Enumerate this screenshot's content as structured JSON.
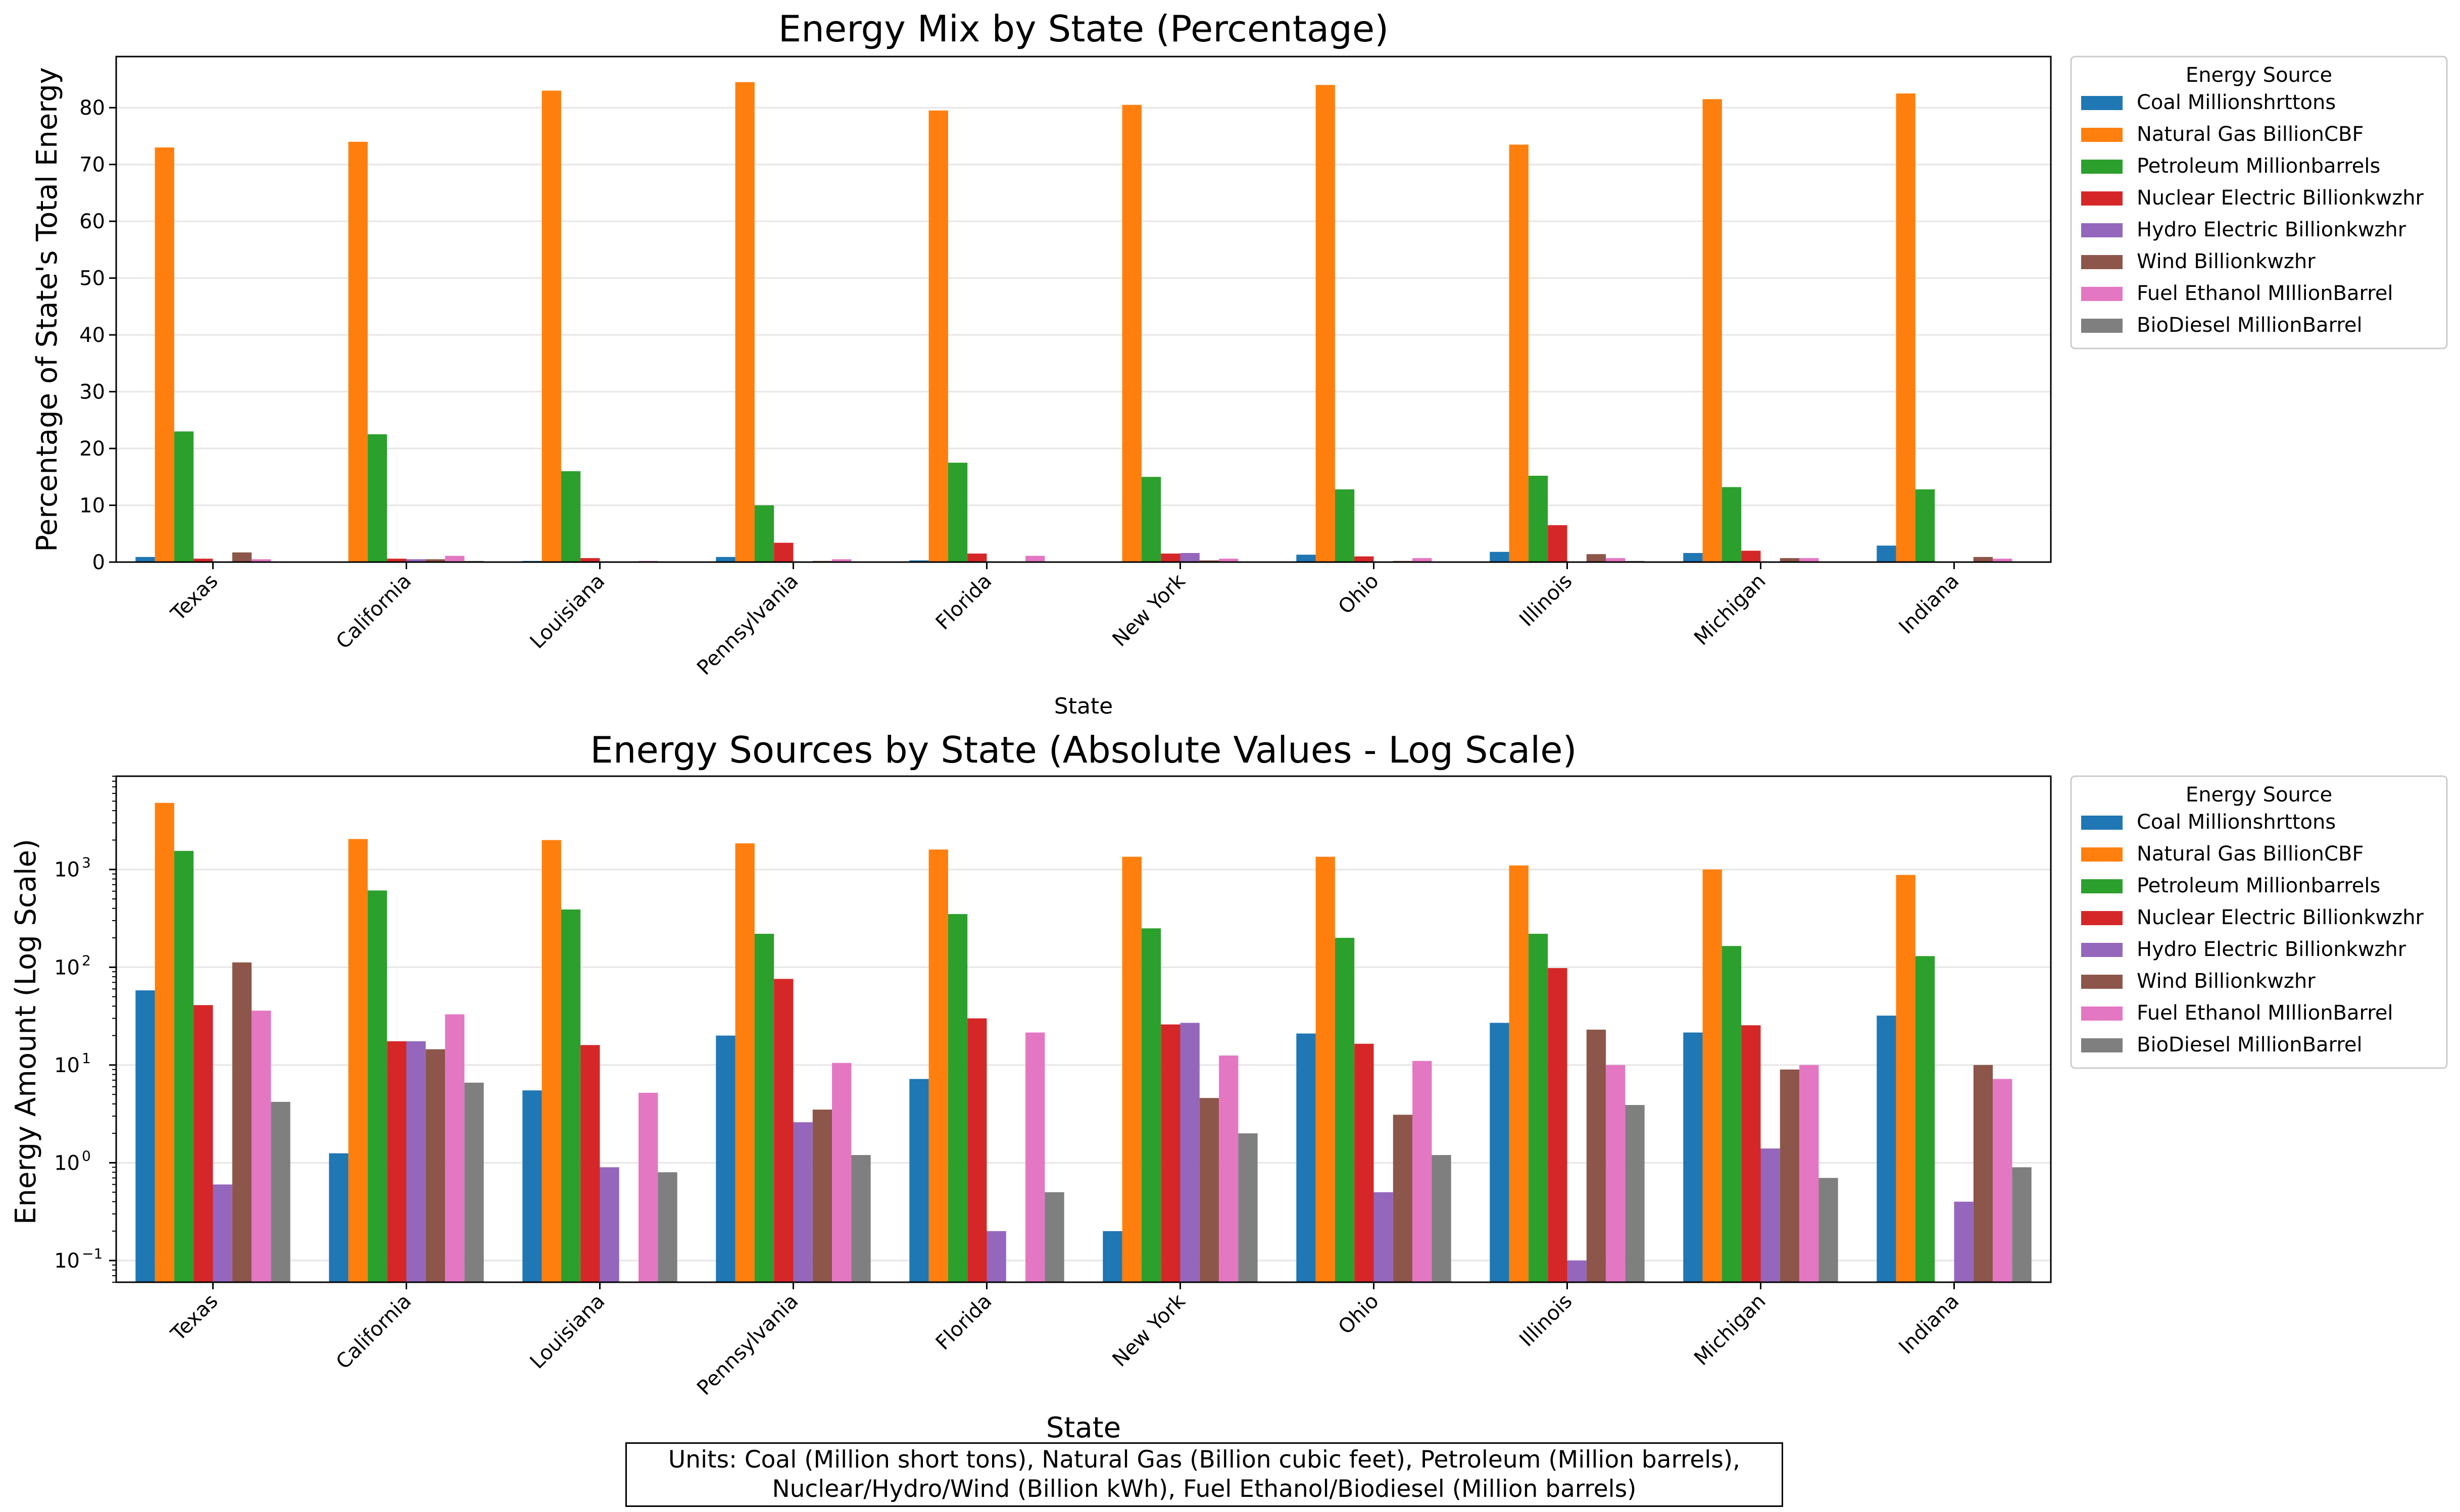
{
  "chart_data": [
    {
      "type": "bar",
      "title": "Energy Mix by State (Percentage)",
      "xlabel": "State",
      "ylabel": "Percentage of State's Total Energy",
      "ylim": [
        0,
        89
      ],
      "yticks": [
        "0",
        "10",
        "20",
        "30",
        "40",
        "50",
        "60",
        "70",
        "80"
      ],
      "yscale": "linear",
      "grid": "horizontal",
      "legend_placement": "outside-right",
      "legend_title": "Energy Source",
      "categories": [
        "Texas",
        "California",
        "Louisiana",
        "Pennsylvania",
        "Florida",
        "New York",
        "Ohio",
        "Illinois",
        "Michigan",
        "Indiana"
      ],
      "series": [
        {
          "name": "Coal Millionshrttons",
          "color": "#1f77b4",
          "values": [
            0.9,
            0.05,
            0.2,
            0.9,
            0.3,
            0.0,
            1.3,
            1.8,
            1.6,
            2.9
          ]
        },
        {
          "name": "Natural Gas BillionCBF",
          "color": "#ff7f0e",
          "values": [
            73.0,
            74.0,
            83.0,
            84.5,
            79.5,
            80.5,
            84.0,
            73.5,
            81.5,
            82.5
          ]
        },
        {
          "name": "Petroleum Millionbarrels",
          "color": "#2ca02c",
          "values": [
            23.0,
            22.5,
            16.0,
            10.0,
            17.5,
            15.0,
            12.8,
            15.2,
            13.2,
            12.8
          ]
        },
        {
          "name": "Nuclear Electric Billionkwzhr",
          "color": "#d62728",
          "values": [
            0.6,
            0.6,
            0.7,
            3.4,
            1.5,
            1.5,
            1.0,
            6.5,
            2.0,
            0.0
          ]
        },
        {
          "name": "Hydro Electric Billionkwzhr",
          "color": "#9467bd",
          "values": [
            0.0,
            0.5,
            0.0,
            0.1,
            0.0,
            1.6,
            0.0,
            0.0,
            0.1,
            0.05
          ]
        },
        {
          "name": "Wind Billionkwzhr",
          "color": "#8c564b",
          "values": [
            1.7,
            0.5,
            0.0,
            0.2,
            0.0,
            0.3,
            0.2,
            1.4,
            0.7,
            0.9
          ]
        },
        {
          "name": "Fuel Ethanol MIllionBarrel",
          "color": "#e377c2",
          "values": [
            0.5,
            1.1,
            0.2,
            0.5,
            1.1,
            0.6,
            0.7,
            0.7,
            0.7,
            0.6
          ]
        },
        {
          "name": "BioDiesel MillionBarrel",
          "color": "#7f7f7f",
          "values": [
            0.1,
            0.2,
            0.05,
            0.05,
            0.03,
            0.1,
            0.1,
            0.2,
            0.05,
            0.1
          ]
        }
      ]
    },
    {
      "type": "bar",
      "title": "Energy Sources by State (Absolute Values - Log Scale)",
      "xlabel": "State",
      "ylabel": "Energy Amount (Log Scale)",
      "yscale": "log",
      "ylim": [
        0.06,
        9000
      ],
      "yticks": [
        "10",
        "10",
        "10",
        "10",
        "10",
        "10"
      ],
      "ytick_exponents": [
        "−1",
        "0",
        "1",
        "2",
        "3",
        ""
      ],
      "ytick_values": [
        0.1,
        1,
        10,
        100,
        1000
      ],
      "grid": "horizontal",
      "legend_placement": "outside-right",
      "legend_title": "Energy Source",
      "categories": [
        "Texas",
        "California",
        "Louisiana",
        "Pennsylvania",
        "Florida",
        "New York",
        "Ohio",
        "Illinois",
        "Michigan",
        "Indiana"
      ],
      "series": [
        {
          "name": "Coal Millionshrttons",
          "color": "#1f77b4",
          "values": [
            58,
            1.25,
            5.5,
            20,
            7.2,
            0.2,
            21,
            27,
            21.5,
            32
          ]
        },
        {
          "name": "Natural Gas BillionCBF",
          "color": "#ff7f0e",
          "values": [
            4800,
            2050,
            2000,
            1850,
            1600,
            1350,
            1350,
            1100,
            1000,
            880
          ]
        },
        {
          "name": "Petroleum Millionbarrels",
          "color": "#2ca02c",
          "values": [
            1550,
            610,
            390,
            220,
            350,
            250,
            200,
            220,
            165,
            130
          ]
        },
        {
          "name": "Nuclear Electric Billionkwzhr",
          "color": "#d62728",
          "values": [
            41,
            17.5,
            16,
            76,
            30,
            26,
            16.5,
            98,
            25.5,
            null
          ]
        },
        {
          "name": "Hydro Electric Billionkwzhr",
          "color": "#9467bd",
          "values": [
            0.6,
            17.5,
            0.9,
            2.6,
            0.2,
            27,
            0.5,
            0.1,
            1.4,
            0.4
          ]
        },
        {
          "name": "Wind Billionkwzhr",
          "color": "#8c564b",
          "values": [
            112,
            14.5,
            null,
            3.5,
            null,
            4.6,
            3.1,
            23,
            9,
            10
          ]
        },
        {
          "name": "Fuel Ethanol MIllionBarrel",
          "color": "#e377c2",
          "values": [
            36,
            33,
            5.2,
            10.5,
            21.5,
            12.5,
            11,
            10,
            10,
            7.2
          ]
        },
        {
          "name": "BioDiesel MillionBarrel",
          "color": "#7f7f7f",
          "values": [
            4.2,
            6.6,
            0.8,
            1.2,
            0.5,
            2,
            1.2,
            3.9,
            0.7,
            0.9
          ]
        }
      ]
    }
  ],
  "units_note": {
    "line1": "Units: Coal (Million short tons), Natural Gas (Billion cubic feet), Petroleum (Million barrels),",
    "line2": "Nuclear/Hydro/Wind (Billion kWh), Fuel Ethanol/Biodiesel (Million barrels)"
  }
}
